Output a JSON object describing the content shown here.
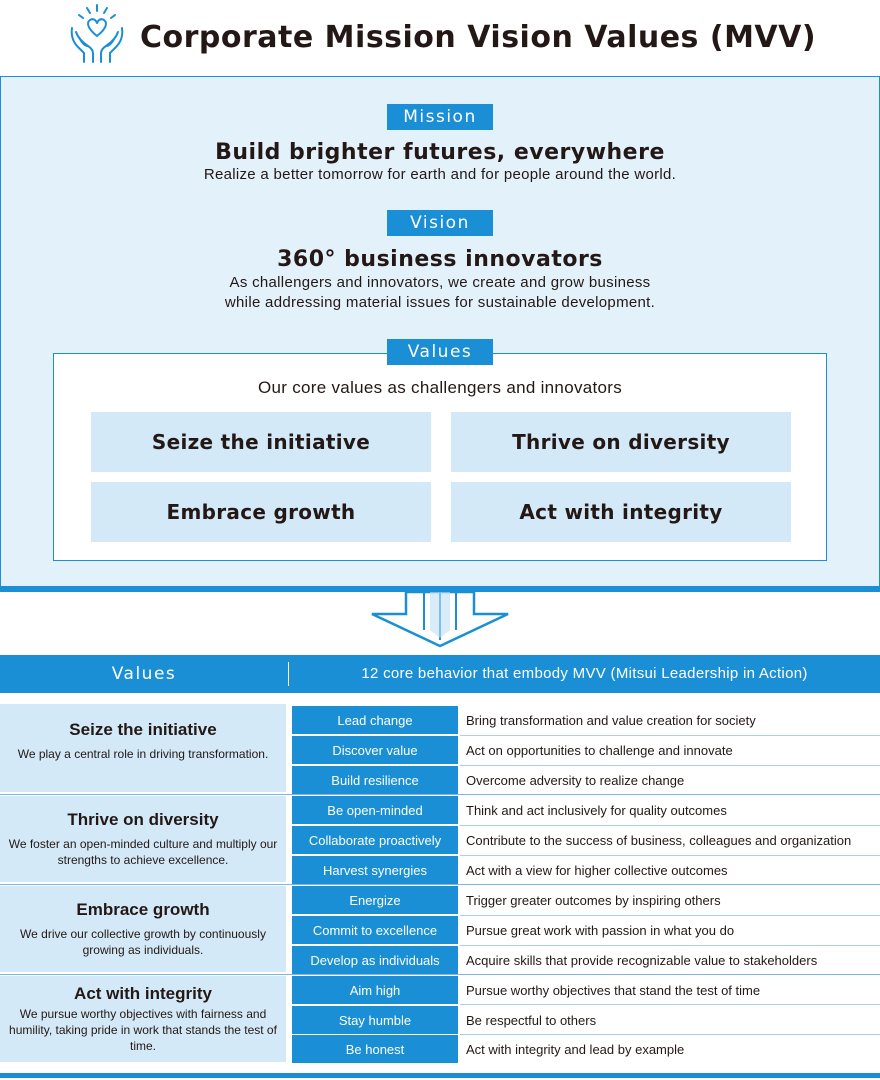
{
  "header": {
    "title": "Corporate Mission Vision Values (MVV)",
    "icon": "heart-in-hands-icon"
  },
  "mission": {
    "label": "Mission",
    "headline": "Build brighter futures, everywhere",
    "text": "Realize a better tomorrow for earth and for people around the world."
  },
  "vision": {
    "label": "Vision",
    "headline": "360° business innovators",
    "text_line1": "As challengers and innovators, we create and grow business",
    "text_line2": "while addressing material issues for sustainable development."
  },
  "values": {
    "label": "Values",
    "intro": "Our core values as challengers and innovators",
    "items": [
      "Seize the initiative",
      "Thrive on diversity",
      "Embrace growth",
      "Act with integrity"
    ]
  },
  "table": {
    "col_values": "Values",
    "col_behaviors": "12 core behavior that embody MVV (Mitsui Leadership in Action)",
    "groups": [
      {
        "title": "Seize the initiative",
        "desc": "We play a central role in driving transformation.",
        "behaviors": [
          {
            "name": "Lead change",
            "desc": "Bring transformation and value creation for society"
          },
          {
            "name": "Discover value",
            "desc": "Act on opportunities to challenge and innovate"
          },
          {
            "name": "Build resilience",
            "desc": "Overcome adversity to realize change"
          }
        ]
      },
      {
        "title": "Thrive on diversity",
        "desc": "We foster an open-minded culture and multiply our strengths to achieve excellence.",
        "behaviors": [
          {
            "name": "Be open-minded",
            "desc": "Think and act inclusively for quality outcomes"
          },
          {
            "name": "Collaborate proactively",
            "desc": "Contribute to the success of business, colleagues and organization"
          },
          {
            "name": "Harvest synergies",
            "desc": "Act with a view for higher collective outcomes"
          }
        ]
      },
      {
        "title": "Embrace growth",
        "desc": "We drive our collective growth by continuously growing as individuals.",
        "behaviors": [
          {
            "name": "Energize",
            "desc": "Trigger greater outcomes by inspiring others"
          },
          {
            "name": "Commit to excellence",
            "desc": "Pursue great work with passion in what you do"
          },
          {
            "name": "Develop as individuals",
            "desc": "Acquire skills that provide recognizable value to stakeholders"
          }
        ]
      },
      {
        "title": "Act with integrity",
        "desc": "We pursue worthy objectives with fairness and humility, taking pride in work that stands the test of time.",
        "behaviors": [
          {
            "name": "Aim high",
            "desc": "Pursue worthy objectives that stand the test of time"
          },
          {
            "name": "Stay humble",
            "desc": "Be respectful to others"
          },
          {
            "name": "Be honest",
            "desc": "Act with integrity and lead by example"
          }
        ]
      }
    ]
  },
  "colors": {
    "accent": "#1a8fd6",
    "panel_bg": "#e3f1fb",
    "card_bg": "#d3e9f7",
    "text": "#231815"
  }
}
